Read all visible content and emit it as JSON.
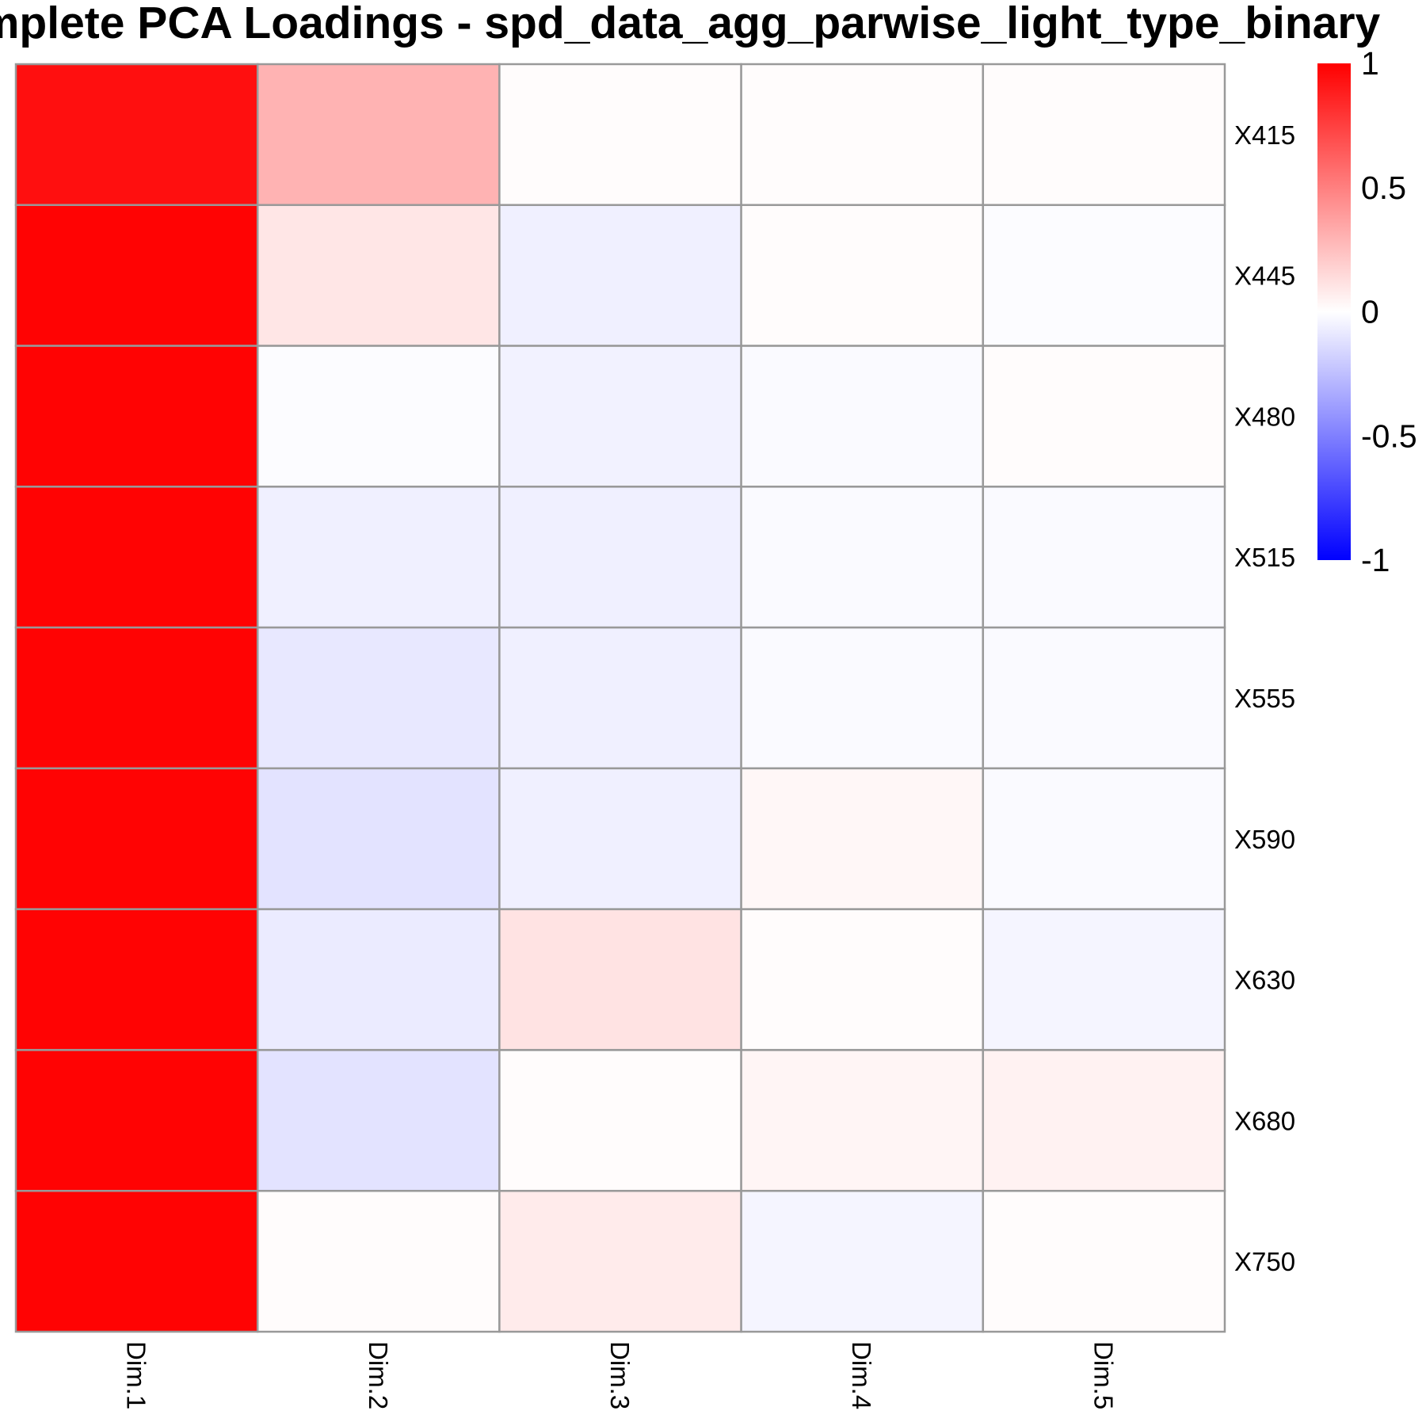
{
  "chart_data": {
    "type": "heatmap",
    "title": "Complete PCA Loadings - spd_data_agg_parwise_light_type_binary",
    "rows": [
      "X415",
      "X445",
      "X480",
      "X515",
      "X555",
      "X590",
      "X630",
      "X680",
      "X750"
    ],
    "columns": [
      "Dim.1",
      "Dim.2",
      "Dim.3",
      "Dim.4",
      "Dim.5"
    ],
    "values": [
      [
        0.94,
        0.3,
        0.01,
        0.01,
        0.01
      ],
      [
        0.99,
        0.1,
        -0.06,
        0.01,
        -0.01
      ],
      [
        0.99,
        -0.01,
        -0.05,
        -0.02,
        0.01
      ],
      [
        0.99,
        -0.06,
        -0.06,
        -0.02,
        -0.02
      ],
      [
        0.99,
        -0.09,
        -0.06,
        -0.02,
        -0.02
      ],
      [
        0.99,
        -0.11,
        -0.06,
        0.03,
        -0.02
      ],
      [
        0.99,
        -0.08,
        0.11,
        0.01,
        -0.04
      ],
      [
        0.99,
        -0.11,
        0.01,
        0.04,
        0.05
      ],
      [
        0.99,
        0.01,
        0.08,
        -0.04,
        0.01
      ]
    ],
    "color_scale": {
      "low": "#0000FF",
      "mid": "#FFFFFF",
      "high": "#FF0000",
      "range": [
        -1,
        1
      ]
    },
    "legend_ticks": [
      "1",
      "0.5",
      "0",
      "-0.5",
      "-1"
    ],
    "legend_tick_values": [
      1,
      0.5,
      0,
      -0.5,
      -1
    ],
    "legend_placement": "right",
    "grid_color": "#999999"
  }
}
